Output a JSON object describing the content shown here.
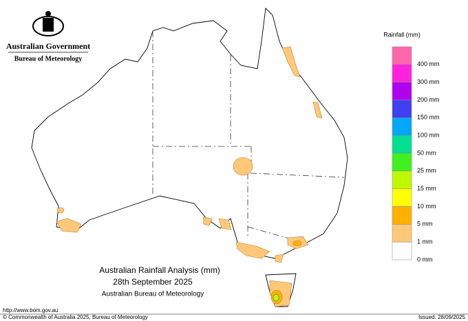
{
  "header": {
    "government": "Australian Government",
    "agency": "Bureau of Meteorology"
  },
  "legend": {
    "title": "Rainfall (mm)",
    "items": [
      {
        "label": "400 mm",
        "color": "#ff66aa"
      },
      {
        "label": "300 mm",
        "color": "#ff22dd"
      },
      {
        "label": "200 mm",
        "color": "#b000f0"
      },
      {
        "label": "150 mm",
        "color": "#4040f0"
      },
      {
        "label": "100 mm",
        "color": "#00a8f8"
      },
      {
        "label": "50 mm",
        "color": "#00e090"
      },
      {
        "label": "25 mm",
        "color": "#40f020"
      },
      {
        "label": "15 mm",
        "color": "#c0f800"
      },
      {
        "label": "10 mm",
        "color": "#ffff00"
      },
      {
        "label": "5 mm",
        "color": "#ffb000"
      },
      {
        "label": "1 mm",
        "color": "#ffc878"
      },
      {
        "label": "0 mm",
        "color": "#ffffff"
      }
    ]
  },
  "titles": [
    "Australian Rainfall Analysis (mm)",
    "28th September 2025",
    "Australian Bureau of Meteorology"
  ],
  "footer": {
    "url": "http://www.bom.gov.au",
    "copyright": "© Commonwealth of Australia 2025, Bureau of Meteorology",
    "issued": "Issued: 28/09/2025"
  }
}
